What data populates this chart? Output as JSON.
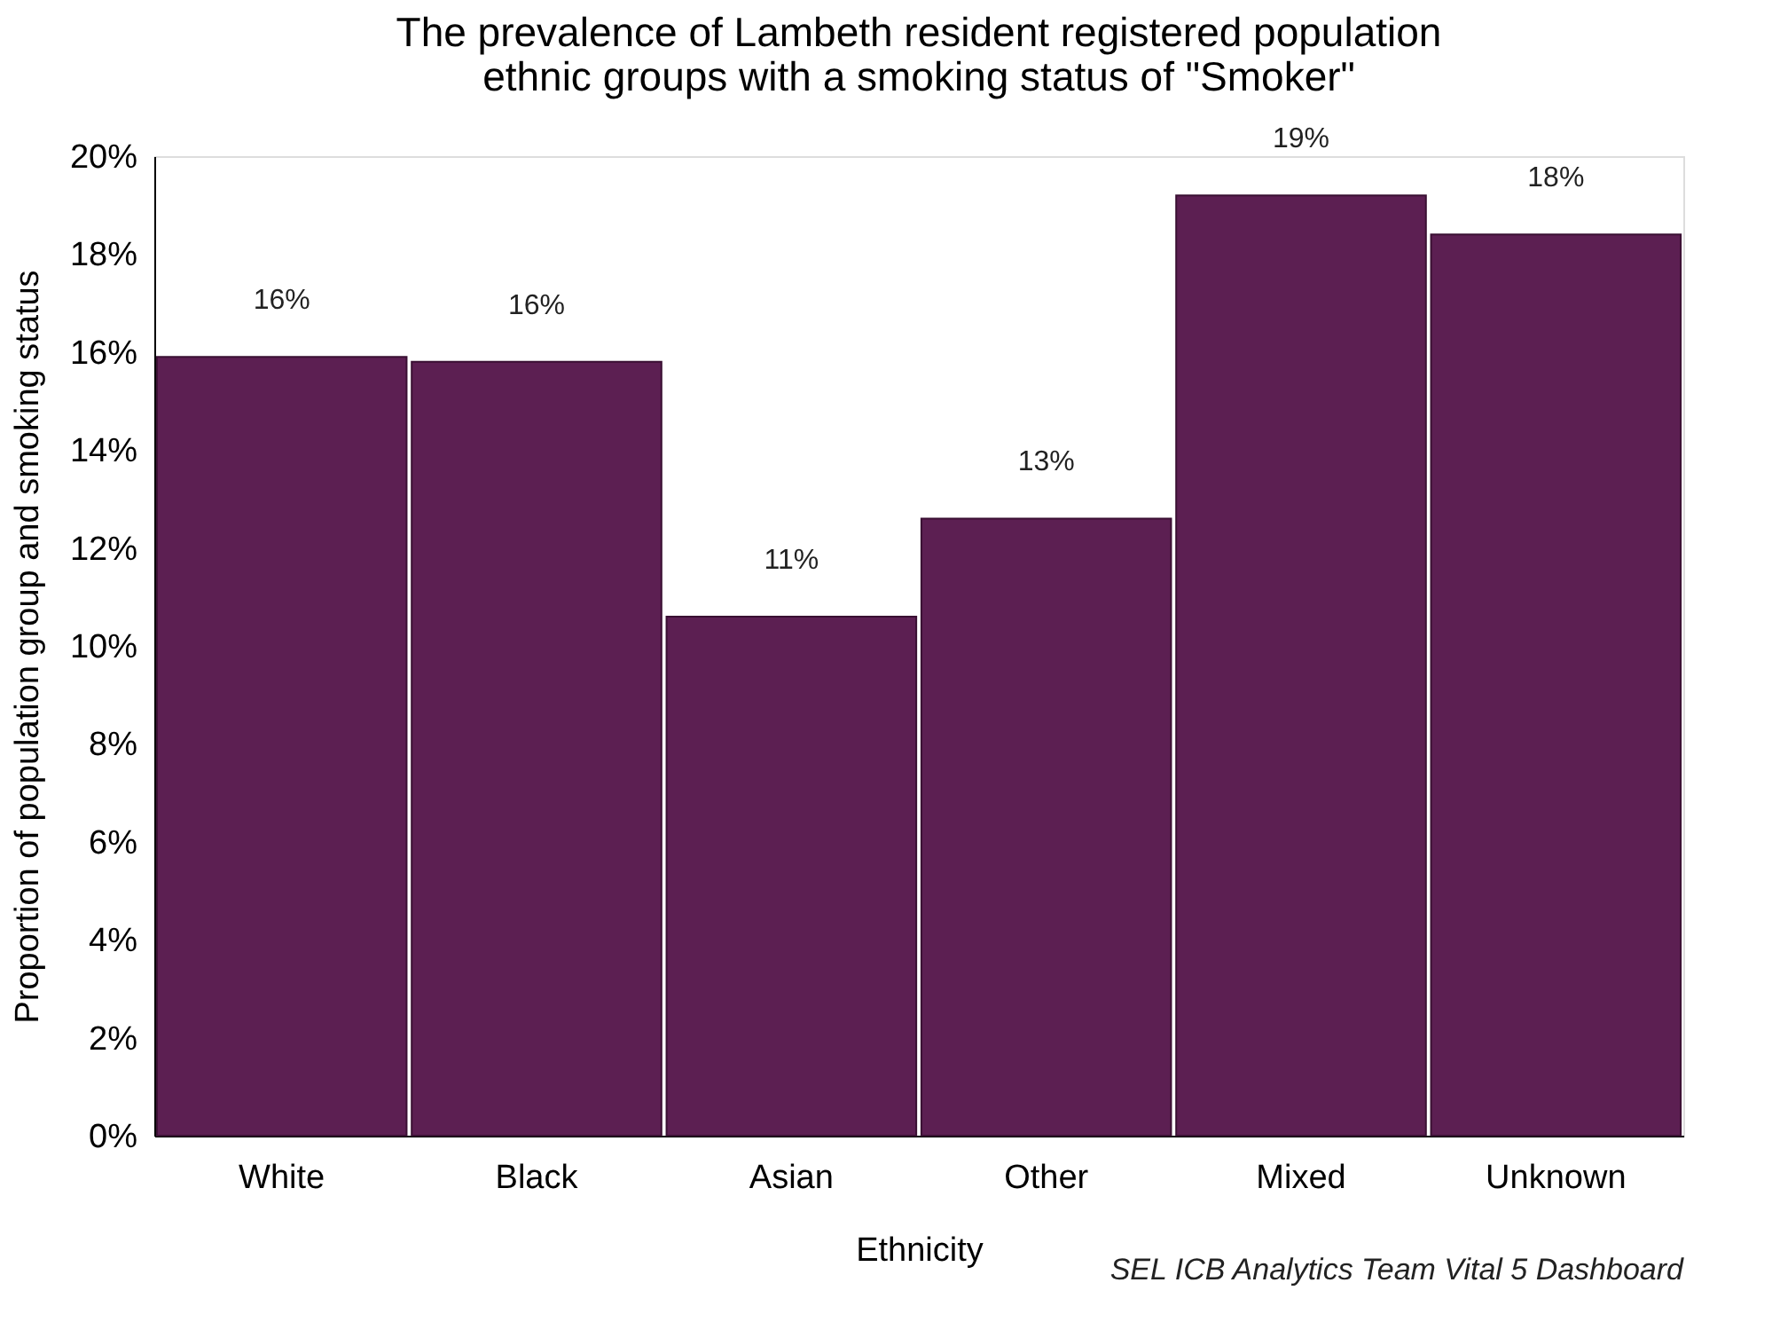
{
  "chart_data": {
    "type": "bar",
    "title": "The prevalence of Lambeth resident registered population\nethnic groups with a smoking status of \"Smoker\"",
    "xlabel": "Ethnicity",
    "ylabel": "Proportion of population group and  smoking status",
    "categories": [
      "White",
      "Black",
      "Asian",
      "Other",
      "Mixed",
      "Unknown"
    ],
    "series": [
      {
        "color": "#5c1f52",
        "values": [
          15.9,
          15.8,
          10.6,
          12.6,
          19.2,
          18.4
        ],
        "value_labels": [
          "16%",
          "16%",
          "11%",
          "13%",
          "19%",
          "18%"
        ]
      }
    ],
    "ylim": [
      0,
      20
    ],
    "yticks": [
      {
        "value": 0,
        "label": "0%"
      },
      {
        "value": 2,
        "label": "2%"
      },
      {
        "value": 4,
        "label": "4%"
      },
      {
        "value": 6,
        "label": "6%"
      },
      {
        "value": 8,
        "label": "8%"
      },
      {
        "value": 10,
        "label": "10%"
      },
      {
        "value": 12,
        "label": "12%"
      },
      {
        "value": 14,
        "label": "14%"
      },
      {
        "value": 16,
        "label": "16%"
      },
      {
        "value": 18,
        "label": "18%"
      },
      {
        "value": 20,
        "label": "20%"
      }
    ],
    "grid": false,
    "annotations": [
      "SEL ICB Analytics Team Vital 5 Dashboard"
    ]
  }
}
